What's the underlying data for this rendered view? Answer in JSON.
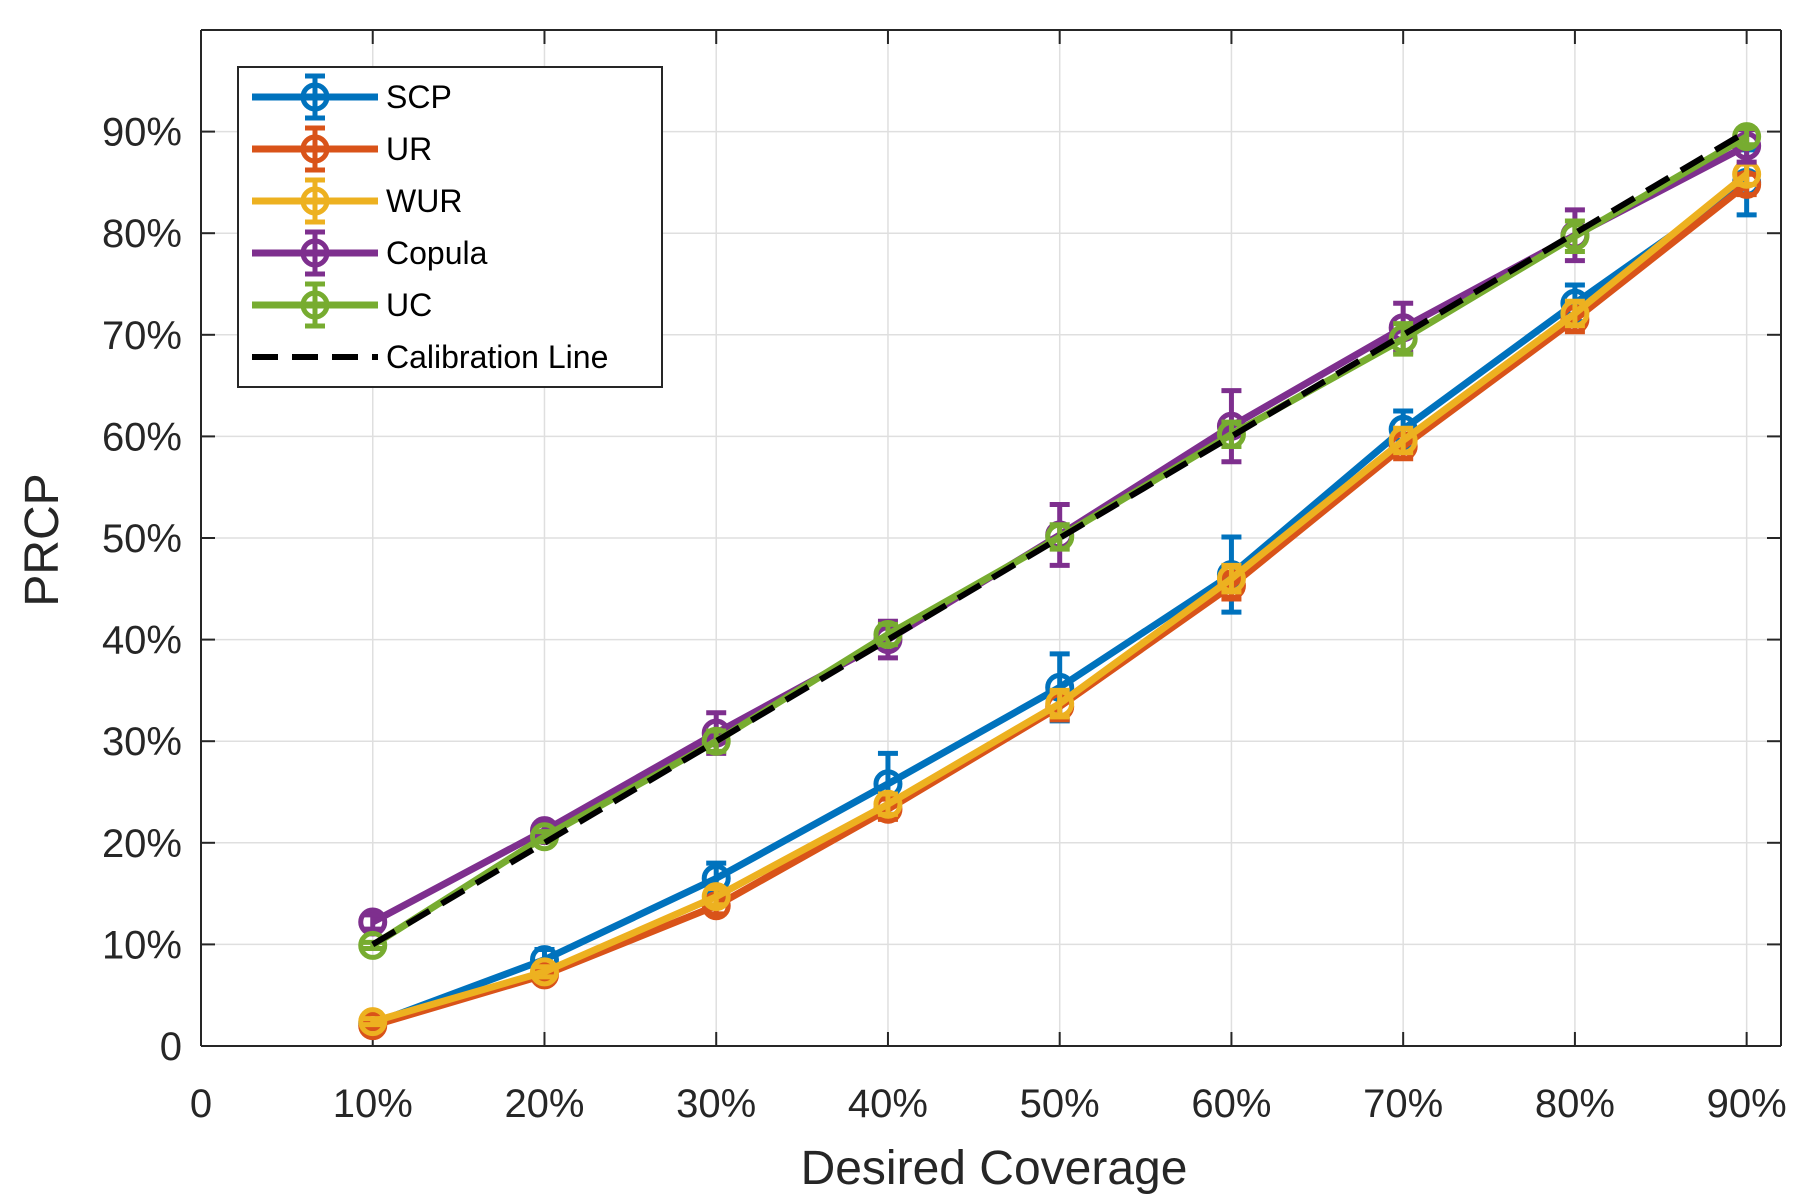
{
  "chart_data": {
    "type": "line",
    "xlabel": "Desired Coverage",
    "ylabel": "PRCP",
    "xlim": [
      0,
      92
    ],
    "ylim": [
      0,
      100
    ],
    "x_ticks": [
      {
        "value": 0,
        "label": "0"
      },
      {
        "value": 10,
        "label": "10%"
      },
      {
        "value": 20,
        "label": "20%"
      },
      {
        "value": 30,
        "label": "30%"
      },
      {
        "value": 40,
        "label": "40%"
      },
      {
        "value": 50,
        "label": "50%"
      },
      {
        "value": 60,
        "label": "60%"
      },
      {
        "value": 70,
        "label": "70%"
      },
      {
        "value": 80,
        "label": "80%"
      },
      {
        "value": 90,
        "label": "90%"
      }
    ],
    "y_ticks": [
      {
        "value": 0,
        "label": "0"
      },
      {
        "value": 10,
        "label": "10%"
      },
      {
        "value": 20,
        "label": "20%"
      },
      {
        "value": 30,
        "label": "30%"
      },
      {
        "value": 40,
        "label": "40%"
      },
      {
        "value": 50,
        "label": "50%"
      },
      {
        "value": 60,
        "label": "60%"
      },
      {
        "value": 70,
        "label": "70%"
      },
      {
        "value": 80,
        "label": "80%"
      },
      {
        "value": 90,
        "label": "90%"
      }
    ],
    "grid": true,
    "legend_position": "top-left",
    "x": [
      10,
      20,
      30,
      40,
      50,
      60,
      70,
      80,
      90
    ],
    "series": [
      {
        "name": "SCP",
        "color": "#0072BD",
        "values": [
          2.2,
          8.5,
          16.5,
          25.8,
          35.3,
          46.4,
          60.7,
          73.1,
          85.0
        ],
        "errors": [
          0.4,
          1.0,
          1.5,
          3.0,
          3.3,
          3.7,
          1.8,
          1.8,
          3.2
        ]
      },
      {
        "name": "UR",
        "color": "#D95319",
        "values": [
          2.0,
          7.0,
          13.8,
          23.3,
          33.4,
          45.3,
          59.0,
          71.5,
          84.8
        ],
        "errors": [
          0.3,
          0.5,
          0.8,
          1.0,
          1.3,
          1.3,
          1.2,
          1.2,
          1.0
        ]
      },
      {
        "name": "WUR",
        "color": "#EDB120",
        "values": [
          2.4,
          7.3,
          14.7,
          23.8,
          33.7,
          46.0,
          59.6,
          72.1,
          85.8
        ],
        "errors": [
          0.3,
          0.5,
          0.8,
          1.0,
          1.3,
          1.3,
          1.2,
          1.2,
          1.0
        ]
      },
      {
        "name": "Copula",
        "color": "#7E2F8E",
        "values": [
          12.2,
          21.2,
          30.8,
          40.0,
          50.3,
          61.0,
          70.7,
          79.8,
          88.6
        ],
        "errors": [
          0.7,
          0.8,
          2.0,
          1.8,
          3.0,
          3.5,
          2.4,
          2.5,
          1.6
        ]
      },
      {
        "name": "UC",
        "color": "#77AC30",
        "values": [
          9.9,
          20.6,
          30.0,
          40.5,
          50.1,
          60.2,
          69.6,
          79.7,
          89.5
        ],
        "errors": [
          0.3,
          0.5,
          1.0,
          1.0,
          1.2,
          1.2,
          1.5,
          1.5,
          0.8
        ]
      }
    ],
    "reference_line": {
      "name": "Calibration Line",
      "color": "#000000",
      "x": [
        10,
        90
      ],
      "y": [
        10,
        90
      ]
    }
  }
}
